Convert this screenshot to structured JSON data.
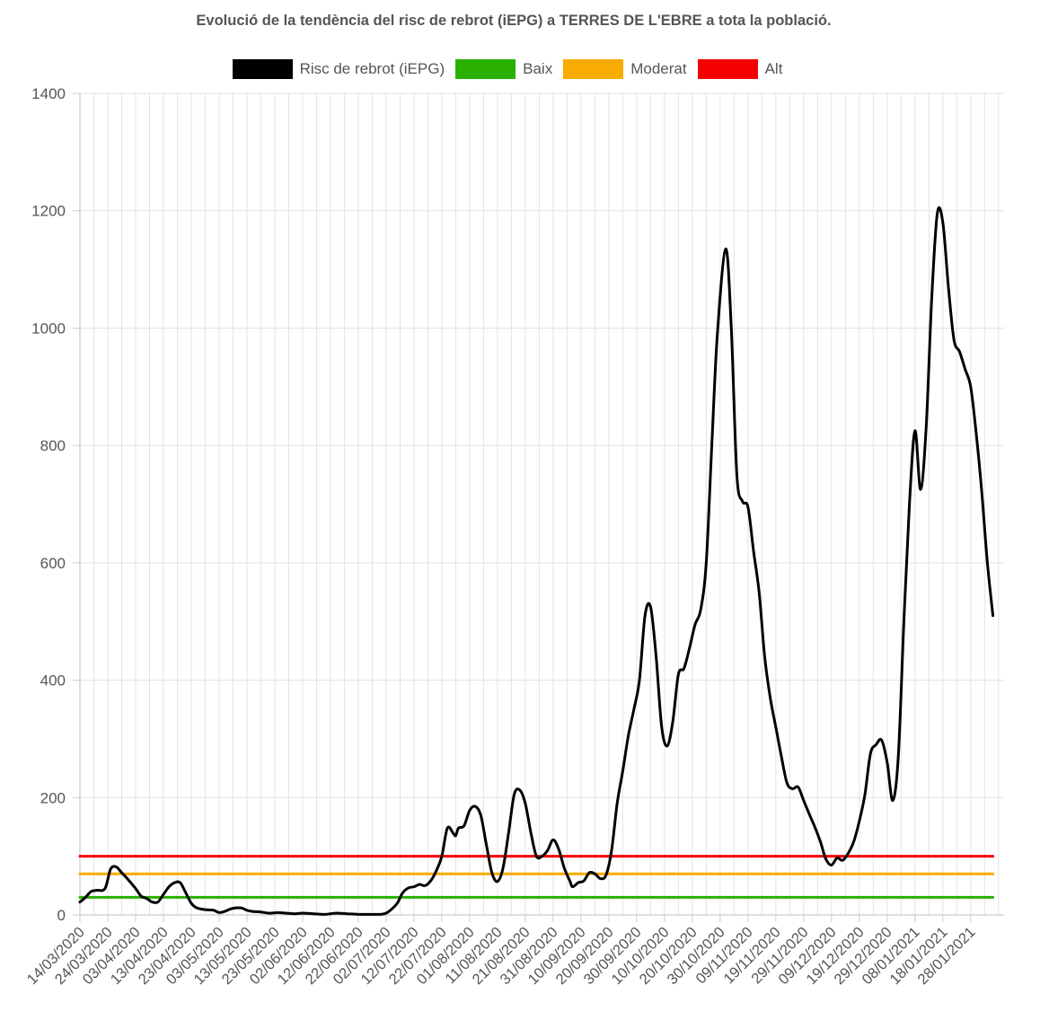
{
  "chart_data": {
    "type": "line",
    "title": "Evolució de la tendència del risc de rebrot (iEPG) a TERRES DE L'EBRE a tota la població.",
    "xlabel": "",
    "ylabel": "",
    "ylim": [
      0,
      1400
    ],
    "y_ticks": [
      0,
      200,
      400,
      600,
      800,
      1000,
      1200,
      1400
    ],
    "x_start": "2020-03-14",
    "x_end": "2021-02-09",
    "x_tick_labels": [
      "14/03/2020",
      "24/03/2020",
      "03/04/2020",
      "13/04/2020",
      "23/04/2020",
      "03/05/2020",
      "13/05/2020",
      "23/05/2020",
      "02/06/2020",
      "12/06/2020",
      "22/06/2020",
      "02/07/2020",
      "12/07/2020",
      "22/07/2020",
      "01/08/2020",
      "11/08/2020",
      "21/08/2020",
      "31/08/2020",
      "10/09/2020",
      "20/09/2020",
      "30/09/2020",
      "10/10/2020",
      "20/10/2020",
      "30/10/2020",
      "09/11/2020",
      "19/11/2020",
      "29/11/2020",
      "09/12/2020",
      "19/12/2020",
      "29/12/2020",
      "08/01/2021",
      "18/01/2021",
      "28/01/2021"
    ],
    "grid": true,
    "legend_position": "top",
    "series": [
      {
        "name": "Risc de rebrot (iEPG)",
        "color": "#000000",
        "points": [
          [
            "2020-03-14",
            22
          ],
          [
            "2020-03-16",
            30
          ],
          [
            "2020-03-18",
            40
          ],
          [
            "2020-03-20",
            42
          ],
          [
            "2020-03-23",
            45
          ],
          [
            "2020-03-25",
            78
          ],
          [
            "2020-03-27",
            82
          ],
          [
            "2020-03-29",
            72
          ],
          [
            "2020-03-31",
            62
          ],
          [
            "2020-04-03",
            45
          ],
          [
            "2020-04-05",
            32
          ],
          [
            "2020-04-07",
            28
          ],
          [
            "2020-04-09",
            22
          ],
          [
            "2020-04-11",
            22
          ],
          [
            "2020-04-13",
            35
          ],
          [
            "2020-04-15",
            48
          ],
          [
            "2020-04-17",
            55
          ],
          [
            "2020-04-19",
            55
          ],
          [
            "2020-04-21",
            38
          ],
          [
            "2020-04-23",
            20
          ],
          [
            "2020-04-25",
            12
          ],
          [
            "2020-04-28",
            9
          ],
          [
            "2020-05-01",
            8
          ],
          [
            "2020-05-03",
            4
          ],
          [
            "2020-05-05",
            6
          ],
          [
            "2020-05-07",
            10
          ],
          [
            "2020-05-09",
            12
          ],
          [
            "2020-05-11",
            12
          ],
          [
            "2020-05-13",
            8
          ],
          [
            "2020-05-15",
            6
          ],
          [
            "2020-05-18",
            5
          ],
          [
            "2020-05-21",
            3
          ],
          [
            "2020-05-24",
            4
          ],
          [
            "2020-05-27",
            3
          ],
          [
            "2020-05-30",
            2
          ],
          [
            "2020-06-02",
            3
          ],
          [
            "2020-06-06",
            2
          ],
          [
            "2020-06-10",
            1
          ],
          [
            "2020-06-14",
            3
          ],
          [
            "2020-06-18",
            2
          ],
          [
            "2020-06-22",
            1
          ],
          [
            "2020-06-26",
            1
          ],
          [
            "2020-06-30",
            1
          ],
          [
            "2020-07-02",
            3
          ],
          [
            "2020-07-04",
            10
          ],
          [
            "2020-07-06",
            20
          ],
          [
            "2020-07-08",
            38
          ],
          [
            "2020-07-10",
            46
          ],
          [
            "2020-07-12",
            48
          ],
          [
            "2020-07-14",
            52
          ],
          [
            "2020-07-16",
            50
          ],
          [
            "2020-07-18",
            58
          ],
          [
            "2020-07-20",
            75
          ],
          [
            "2020-07-22",
            100
          ],
          [
            "2020-07-24",
            148
          ],
          [
            "2020-07-26",
            140
          ],
          [
            "2020-07-27",
            135
          ],
          [
            "2020-07-28",
            148
          ],
          [
            "2020-07-30",
            152
          ],
          [
            "2020-08-01",
            178
          ],
          [
            "2020-08-03",
            185
          ],
          [
            "2020-08-05",
            170
          ],
          [
            "2020-08-07",
            120
          ],
          [
            "2020-08-09",
            72
          ],
          [
            "2020-08-11",
            57
          ],
          [
            "2020-08-13",
            80
          ],
          [
            "2020-08-15",
            140
          ],
          [
            "2020-08-17",
            205
          ],
          [
            "2020-08-19",
            213
          ],
          [
            "2020-08-21",
            190
          ],
          [
            "2020-08-23",
            140
          ],
          [
            "2020-08-25",
            100
          ],
          [
            "2020-08-27",
            100
          ],
          [
            "2020-08-29",
            110
          ],
          [
            "2020-08-31",
            128
          ],
          [
            "2020-09-02",
            112
          ],
          [
            "2020-09-04",
            80
          ],
          [
            "2020-09-06",
            58
          ],
          [
            "2020-09-07",
            48
          ],
          [
            "2020-09-09",
            55
          ],
          [
            "2020-09-11",
            58
          ],
          [
            "2020-09-13",
            72
          ],
          [
            "2020-09-15",
            70
          ],
          [
            "2020-09-17",
            62
          ],
          [
            "2020-09-19",
            68
          ],
          [
            "2020-09-21",
            110
          ],
          [
            "2020-09-23",
            190
          ],
          [
            "2020-09-25",
            245
          ],
          [
            "2020-09-27",
            305
          ],
          [
            "2020-09-29",
            350
          ],
          [
            "2020-10-01",
            400
          ],
          [
            "2020-10-03",
            510
          ],
          [
            "2020-10-05",
            525
          ],
          [
            "2020-10-07",
            440
          ],
          [
            "2020-10-09",
            320
          ],
          [
            "2020-10-11",
            288
          ],
          [
            "2020-10-13",
            330
          ],
          [
            "2020-10-15",
            410
          ],
          [
            "2020-10-17",
            420
          ],
          [
            "2020-10-19",
            455
          ],
          [
            "2020-10-21",
            495
          ],
          [
            "2020-10-23",
            520
          ],
          [
            "2020-10-25",
            600
          ],
          [
            "2020-10-27",
            800
          ],
          [
            "2020-10-29",
            990
          ],
          [
            "2020-11-01",
            1135
          ],
          [
            "2020-11-03",
            1000
          ],
          [
            "2020-11-05",
            750
          ],
          [
            "2020-11-07",
            705
          ],
          [
            "2020-11-09",
            695
          ],
          [
            "2020-11-11",
            620
          ],
          [
            "2020-11-13",
            550
          ],
          [
            "2020-11-15",
            440
          ],
          [
            "2020-11-17",
            370
          ],
          [
            "2020-11-19",
            320
          ],
          [
            "2020-11-21",
            270
          ],
          [
            "2020-11-23",
            225
          ],
          [
            "2020-11-25",
            215
          ],
          [
            "2020-11-27",
            218
          ],
          [
            "2020-11-29",
            195
          ],
          [
            "2020-12-01",
            172
          ],
          [
            "2020-12-03",
            150
          ],
          [
            "2020-12-05",
            125
          ],
          [
            "2020-12-07",
            95
          ],
          [
            "2020-12-09",
            85
          ],
          [
            "2020-12-11",
            97
          ],
          [
            "2020-12-13",
            93
          ],
          [
            "2020-12-15",
            105
          ],
          [
            "2020-12-17",
            125
          ],
          [
            "2020-12-19",
            160
          ],
          [
            "2020-12-21",
            205
          ],
          [
            "2020-12-23",
            275
          ],
          [
            "2020-12-25",
            290
          ],
          [
            "2020-12-27",
            298
          ],
          [
            "2020-12-29",
            260
          ],
          [
            "2020-12-31",
            195
          ],
          [
            "2021-01-02",
            270
          ],
          [
            "2021-01-04",
            500
          ],
          [
            "2021-01-06",
            700
          ],
          [
            "2021-01-08",
            825
          ],
          [
            "2021-01-10",
            725
          ],
          [
            "2021-01-12",
            830
          ],
          [
            "2021-01-14",
            1050
          ],
          [
            "2021-01-16",
            1195
          ],
          [
            "2021-01-18",
            1180
          ],
          [
            "2021-01-20",
            1070
          ],
          [
            "2021-01-22",
            980
          ],
          [
            "2021-01-24",
            960
          ],
          [
            "2021-01-26",
            930
          ],
          [
            "2021-01-28",
            900
          ],
          [
            "2021-01-30",
            820
          ],
          [
            "2021-02-01",
            720
          ],
          [
            "2021-02-03",
            600
          ],
          [
            "2021-02-05",
            510
          ]
        ]
      },
      {
        "name": "Baix",
        "color": "#2ab000",
        "points": [
          [
            "2020-03-14",
            30
          ],
          [
            "2021-02-05",
            30
          ]
        ]
      },
      {
        "name": "Moderat",
        "color": "#f8ab00",
        "points": [
          [
            "2020-03-14",
            70
          ],
          [
            "2021-02-05",
            70
          ]
        ]
      },
      {
        "name": "Alt",
        "color": "#f50000",
        "points": [
          [
            "2020-03-14",
            100
          ],
          [
            "2021-02-05",
            100
          ]
        ]
      }
    ]
  }
}
